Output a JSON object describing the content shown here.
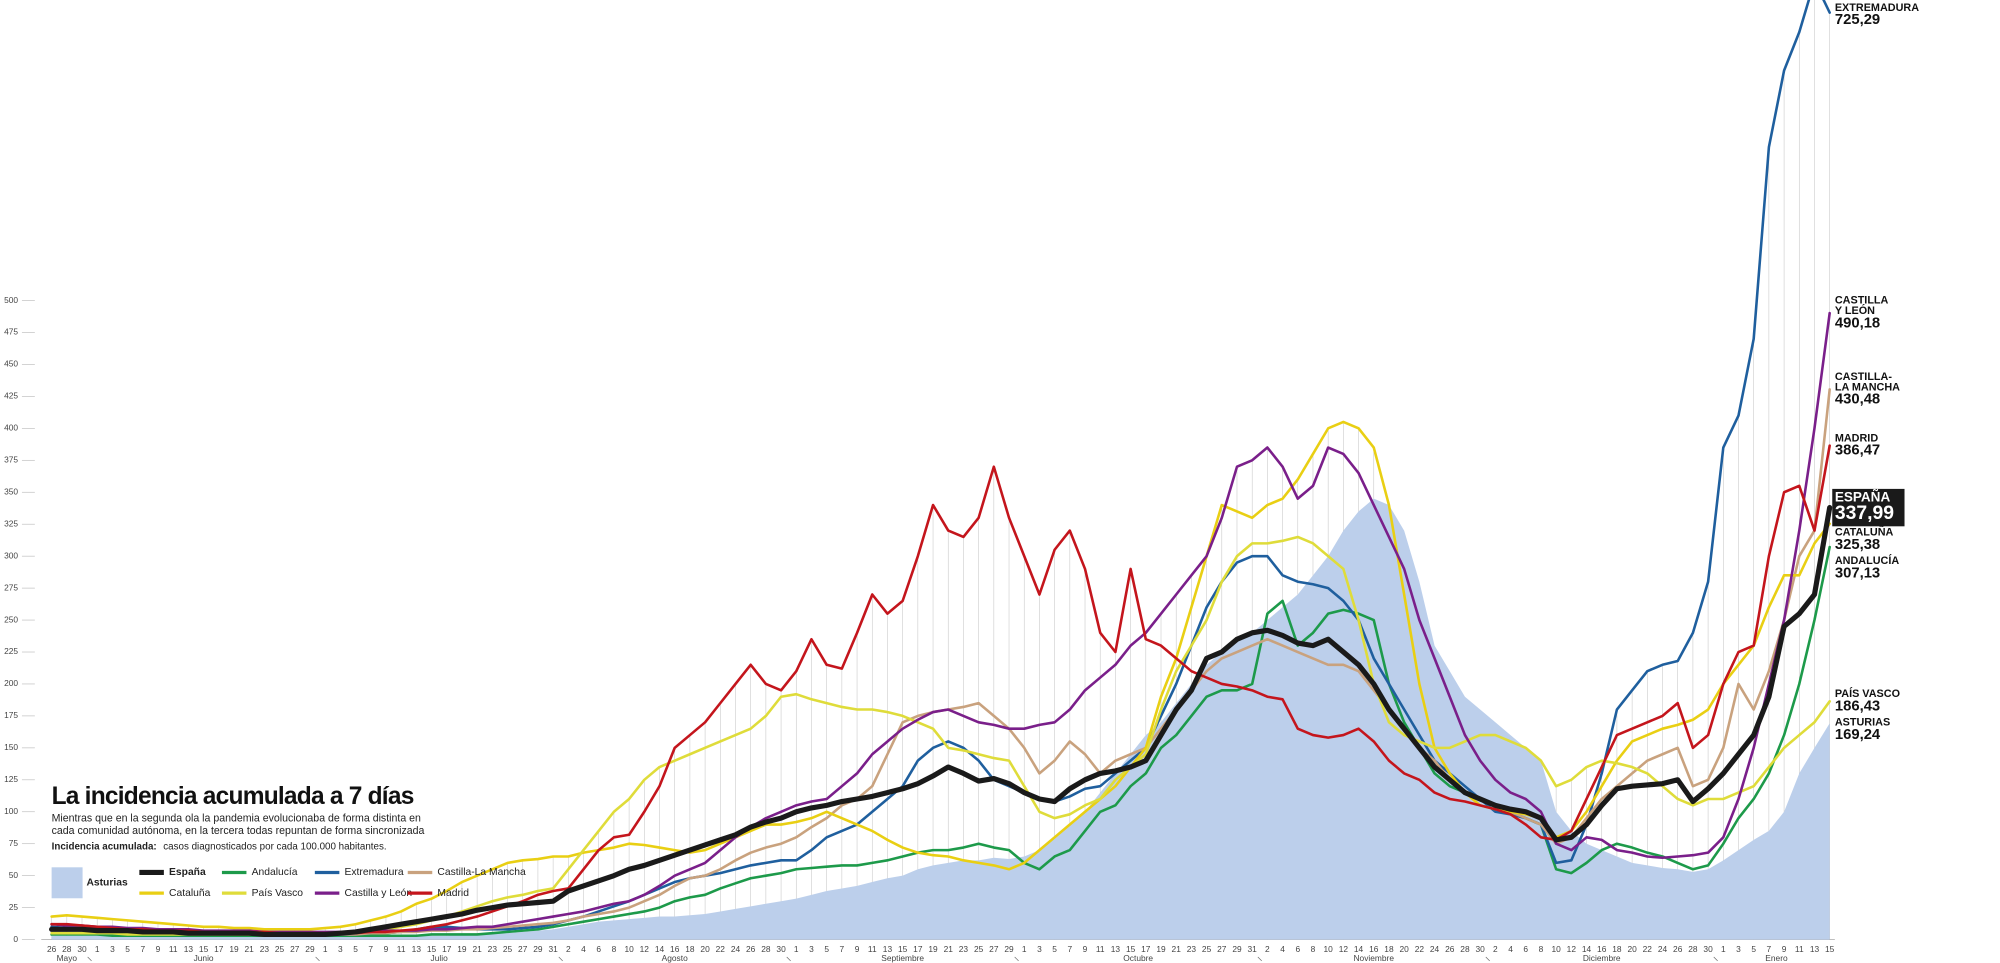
{
  "chart_data": {
    "type": "line",
    "title": "La incidencia acumulada a 7 días",
    "subtitle": [
      "Mientras que en la segunda ola la pandemia evolucionaba de forma distinta en",
      "cada comunidad autónoma, en la tercera todas repuntan de forma sincronizada"
    ],
    "note": {
      "label": "Incidencia acumulada:",
      "text": "casos diagnosticados por cada 100.000 habitantes."
    },
    "categories": [
      "26",
      "28",
      "30",
      "1",
      "3",
      "5",
      "7",
      "9",
      "11",
      "13",
      "15",
      "17",
      "19",
      "21",
      "23",
      "25",
      "27",
      "29",
      "1",
      "3",
      "5",
      "7",
      "9",
      "11",
      "13",
      "15",
      "17",
      "19",
      "21",
      "23",
      "25",
      "27",
      "29",
      "31",
      "2",
      "4",
      "6",
      "8",
      "10",
      "12",
      "14",
      "16",
      "18",
      "20",
      "22",
      "24",
      "26",
      "28",
      "30",
      "1",
      "3",
      "5",
      "7",
      "9",
      "11",
      "13",
      "15",
      "17",
      "19",
      "21",
      "23",
      "25",
      "27",
      "29",
      "1",
      "3",
      "5",
      "7",
      "9",
      "11",
      "13",
      "15",
      "17",
      "19",
      "21",
      "23",
      "25",
      "27",
      "29",
      "31",
      "2",
      "4",
      "6",
      "8",
      "10",
      "12",
      "14",
      "16",
      "18",
      "20",
      "22",
      "24",
      "26",
      "28",
      "30",
      "2",
      "4",
      "6",
      "8",
      "10",
      "12",
      "14",
      "16",
      "18",
      "20",
      "22",
      "24",
      "26",
      "28",
      "30",
      "1",
      "3",
      "5",
      "7",
      "9",
      "11",
      "13",
      "15"
    ],
    "months": [
      "Mayo",
      "Junio",
      "Julio",
      "Agosto",
      "Septiembre",
      "Octubre",
      "Noviembre",
      "Diciembre",
      "Enero"
    ],
    "ylim": [
      0,
      735
    ],
    "yticks": [
      0,
      25,
      50,
      75,
      100,
      125,
      150,
      175,
      200,
      225,
      250,
      275,
      300,
      325,
      350,
      375,
      400,
      425,
      450,
      475,
      500
    ],
    "xgrid": true,
    "series": [
      {
        "name": "Asturias",
        "type": "area",
        "color": "#bccfeb",
        "end_name": [
          "ASTURIAS"
        ],
        "end_value_label": "169,24",
        "values": [
          3,
          3,
          3,
          3,
          3,
          2,
          2,
          2,
          2,
          2,
          2,
          2,
          2,
          2,
          2,
          2,
          2,
          2,
          2,
          2,
          2,
          2,
          3,
          3,
          3,
          3,
          3,
          4,
          4,
          5,
          5,
          6,
          7,
          8,
          10,
          12,
          14,
          15,
          16,
          17,
          18,
          18,
          19,
          20,
          22,
          24,
          26,
          28,
          30,
          32,
          35,
          38,
          40,
          42,
          45,
          48,
          50,
          55,
          58,
          60,
          62,
          62,
          64,
          63,
          65,
          70,
          80,
          90,
          100,
          115,
          130,
          145,
          160,
          170,
          185,
          200,
          215,
          225,
          235,
          240,
          250,
          260,
          270,
          285,
          300,
          320,
          335,
          345,
          340,
          320,
          280,
          230,
          210,
          190,
          180,
          170,
          160,
          150,
          140,
          100,
          85,
          75,
          70,
          65,
          60,
          58,
          56,
          55,
          53,
          55,
          62,
          70,
          78,
          85,
          100,
          130,
          150,
          169.24
        ]
      },
      {
        "name": "España",
        "type": "line",
        "color": "#1a1a1a",
        "highlight": true,
        "end_name": [
          "ESPAÑA"
        ],
        "end_value_label": "337,99",
        "values": [
          8,
          8,
          8,
          7,
          7,
          7,
          6,
          6,
          6,
          5,
          5,
          5,
          5,
          5,
          4,
          4,
          4,
          4,
          4,
          5,
          6,
          8,
          10,
          12,
          14,
          16,
          18,
          20,
          23,
          25,
          27,
          28,
          29,
          30,
          38,
          42,
          46,
          50,
          55,
          58,
          62,
          66,
          70,
          74,
          78,
          82,
          88,
          92,
          95,
          100,
          103,
          105,
          108,
          110,
          112,
          115,
          118,
          122,
          128,
          135,
          130,
          124,
          126,
          122,
          115,
          110,
          108,
          118,
          125,
          130,
          132,
          135,
          140,
          160,
          180,
          195,
          220,
          225,
          235,
          240,
          242,
          238,
          232,
          230,
          235,
          225,
          215,
          200,
          180,
          165,
          150,
          135,
          125,
          115,
          110,
          105,
          102,
          100,
          95,
          78,
          80,
          90,
          105,
          118,
          120,
          121,
          122,
          125,
          108,
          118,
          130,
          145,
          160,
          190,
          245,
          255,
          270,
          337.99
        ]
      },
      {
        "name": "Andalucía",
        "type": "line",
        "color": "#1d9a4a",
        "end_name": [
          "ANDALUCÍA"
        ],
        "end_value_label": "307,13",
        "values": [
          4,
          4,
          4,
          4,
          3,
          3,
          3,
          3,
          3,
          3,
          3,
          3,
          3,
          3,
          3,
          3,
          3,
          3,
          3,
          3,
          3,
          3,
          3,
          3,
          3,
          4,
          4,
          4,
          4,
          5,
          6,
          7,
          8,
          10,
          12,
          14,
          16,
          18,
          20,
          22,
          25,
          30,
          33,
          35,
          40,
          44,
          48,
          50,
          52,
          55,
          56,
          57,
          58,
          58,
          60,
          62,
          65,
          68,
          70,
          70,
          72,
          75,
          72,
          70,
          60,
          55,
          65,
          70,
          85,
          100,
          105,
          120,
          130,
          150,
          160,
          175,
          190,
          195,
          195,
          200,
          255,
          265,
          230,
          240,
          255,
          258,
          255,
          250,
          200,
          170,
          150,
          130,
          120,
          115,
          110,
          105,
          100,
          95,
          90,
          55,
          52,
          60,
          70,
          75,
          72,
          68,
          65,
          60,
          55,
          58,
          75,
          95,
          110,
          130,
          160,
          200,
          250,
          307.13
        ]
      },
      {
        "name": "Extremadura",
        "type": "line",
        "color": "#1f5f9e",
        "end_name": [
          "EXTREMADURA"
        ],
        "end_value_label": "725,29",
        "values": [
          10,
          9,
          9,
          8,
          8,
          7,
          7,
          6,
          6,
          5,
          5,
          5,
          5,
          5,
          4,
          4,
          4,
          4,
          4,
          4,
          4,
          5,
          5,
          6,
          8,
          10,
          10,
          9,
          8,
          8,
          8,
          9,
          10,
          12,
          15,
          18,
          22,
          26,
          30,
          35,
          40,
          45,
          48,
          50,
          52,
          55,
          58,
          60,
          62,
          62,
          70,
          80,
          85,
          90,
          100,
          110,
          120,
          140,
          150,
          155,
          150,
          140,
          125,
          120,
          115,
          110,
          108,
          112,
          118,
          120,
          130,
          140,
          150,
          175,
          200,
          230,
          260,
          280,
          295,
          300,
          300,
          285,
          280,
          278,
          275,
          265,
          250,
          220,
          200,
          180,
          160,
          140,
          130,
          120,
          110,
          100,
          98,
          95,
          90,
          60,
          62,
          90,
          130,
          180,
          195,
          210,
          215,
          218,
          240,
          280,
          385,
          410,
          470,
          620,
          680,
          710,
          750,
          725.29
        ]
      },
      {
        "name": "Castilla-La Mancha",
        "type": "line",
        "color": "#c9a27e",
        "end_name": [
          "CASTILLA-",
          "LA MANCHA"
        ],
        "end_value_label": "430,48",
        "values": [
          8,
          8,
          7,
          7,
          7,
          6,
          6,
          6,
          5,
          5,
          5,
          5,
          5,
          5,
          4,
          4,
          4,
          4,
          4,
          4,
          4,
          5,
          5,
          6,
          6,
          7,
          7,
          8,
          8,
          9,
          10,
          11,
          12,
          13,
          15,
          18,
          20,
          22,
          25,
          30,
          35,
          42,
          48,
          50,
          55,
          62,
          68,
          72,
          75,
          80,
          88,
          95,
          105,
          110,
          120,
          145,
          170,
          175,
          178,
          180,
          182,
          185,
          175,
          165,
          150,
          130,
          140,
          155,
          145,
          130,
          140,
          145,
          150,
          165,
          180,
          195,
          210,
          220,
          225,
          230,
          235,
          230,
          225,
          220,
          215,
          215,
          210,
          195,
          180,
          165,
          150,
          140,
          125,
          115,
          110,
          105,
          100,
          95,
          90,
          75,
          80,
          95,
          110,
          120,
          130,
          140,
          145,
          150,
          120,
          125,
          150,
          200,
          180,
          210,
          250,
          300,
          320,
          430.48
        ]
      },
      {
        "name": "Cataluña",
        "type": "line",
        "color": "#e9cf13",
        "end_name": [
          "CATALUÑA"
        ],
        "end_value_label": "325,38",
        "values": [
          18,
          19,
          18,
          17,
          16,
          15,
          14,
          13,
          12,
          11,
          10,
          10,
          9,
          9,
          8,
          8,
          8,
          8,
          9,
          10,
          12,
          15,
          18,
          22,
          28,
          32,
          38,
          45,
          50,
          55,
          60,
          62,
          63,
          65,
          65,
          68,
          70,
          72,
          75,
          74,
          72,
          70,
          68,
          70,
          75,
          80,
          85,
          90,
          90,
          92,
          95,
          100,
          95,
          90,
          85,
          78,
          72,
          68,
          66,
          65,
          62,
          60,
          58,
          55,
          60,
          70,
          80,
          90,
          100,
          110,
          120,
          135,
          150,
          190,
          220,
          260,
          300,
          340,
          335,
          330,
          340,
          345,
          360,
          380,
          400,
          405,
          400,
          385,
          340,
          270,
          200,
          150,
          130,
          115,
          105,
          102,
          100,
          98,
          95,
          80,
          85,
          100,
          120,
          140,
          155,
          160,
          165,
          168,
          172,
          180,
          200,
          215,
          230,
          260,
          285,
          285,
          310,
          325.38
        ]
      },
      {
        "name": "País Vasco",
        "type": "line",
        "color": "#dfdc3a",
        "end_name": [
          "PAÍS VASCO"
        ],
        "end_value_label": "186,43",
        "values": [
          5,
          5,
          5,
          5,
          5,
          4,
          4,
          4,
          4,
          4,
          4,
          4,
          4,
          4,
          4,
          4,
          4,
          4,
          5,
          5,
          6,
          7,
          8,
          10,
          12,
          15,
          18,
          22,
          26,
          30,
          33,
          35,
          38,
          40,
          55,
          70,
          85,
          100,
          110,
          125,
          135,
          140,
          145,
          150,
          155,
          160,
          165,
          175,
          190,
          192,
          188,
          185,
          182,
          180,
          180,
          178,
          175,
          170,
          165,
          150,
          148,
          145,
          142,
          140,
          120,
          100,
          95,
          98,
          105,
          110,
          125,
          135,
          145,
          180,
          210,
          230,
          250,
          280,
          300,
          310,
          310,
          312,
          315,
          310,
          300,
          290,
          250,
          200,
          170,
          160,
          155,
          150,
          150,
          155,
          160,
          160,
          155,
          150,
          140,
          120,
          125,
          135,
          140,
          138,
          135,
          130,
          120,
          110,
          105,
          110,
          110,
          115,
          120,
          135,
          150,
          160,
          170,
          186.43
        ]
      },
      {
        "name": "Castilla y León",
        "type": "line",
        "color": "#7a1f8a",
        "end_name": [
          "CASTILLA",
          "Y LEÓN"
        ],
        "end_value_label": "490,18",
        "values": [
          12,
          11,
          11,
          10,
          10,
          9,
          9,
          8,
          8,
          8,
          7,
          7,
          7,
          7,
          6,
          6,
          6,
          6,
          6,
          6,
          6,
          6,
          7,
          7,
          7,
          8,
          8,
          9,
          10,
          10,
          12,
          14,
          16,
          18,
          20,
          22,
          25,
          28,
          30,
          35,
          42,
          50,
          55,
          60,
          70,
          80,
          88,
          95,
          100,
          105,
          108,
          110,
          120,
          130,
          145,
          155,
          165,
          172,
          178,
          180,
          175,
          170,
          168,
          165,
          165,
          168,
          170,
          180,
          195,
          205,
          215,
          230,
          240,
          255,
          270,
          285,
          300,
          330,
          370,
          375,
          385,
          370,
          345,
          355,
          385,
          380,
          365,
          340,
          315,
          290,
          250,
          220,
          190,
          160,
          140,
          125,
          115,
          110,
          100,
          75,
          70,
          80,
          78,
          70,
          68,
          65,
          64,
          65,
          66,
          68,
          80,
          110,
          150,
          200,
          250,
          320,
          400,
          490.18
        ]
      },
      {
        "name": "Madrid",
        "type": "line",
        "color": "#c4151c",
        "end_name": [
          "MADRID"
        ],
        "end_value_label": "386,47",
        "values": [
          12,
          12,
          11,
          10,
          9,
          8,
          8,
          7,
          7,
          7,
          6,
          6,
          6,
          6,
          6,
          5,
          5,
          5,
          5,
          5,
          5,
          6,
          6,
          7,
          8,
          10,
          12,
          15,
          18,
          22,
          26,
          30,
          35,
          38,
          40,
          55,
          70,
          80,
          82,
          100,
          120,
          150,
          160,
          170,
          185,
          200,
          215,
          200,
          195,
          210,
          235,
          215,
          212,
          240,
          270,
          255,
          265,
          300,
          340,
          320,
          315,
          330,
          370,
          330,
          300,
          270,
          305,
          320,
          290,
          240,
          225,
          290,
          235,
          230,
          220,
          210,
          205,
          200,
          198,
          195,
          190,
          188,
          165,
          160,
          158,
          160,
          165,
          155,
          140,
          130,
          125,
          115,
          110,
          108,
          105,
          102,
          98,
          90,
          80,
          78,
          85,
          110,
          135,
          160,
          165,
          170,
          175,
          185,
          150,
          160,
          200,
          225,
          230,
          300,
          350,
          355,
          320,
          386.47
        ]
      }
    ]
  }
}
